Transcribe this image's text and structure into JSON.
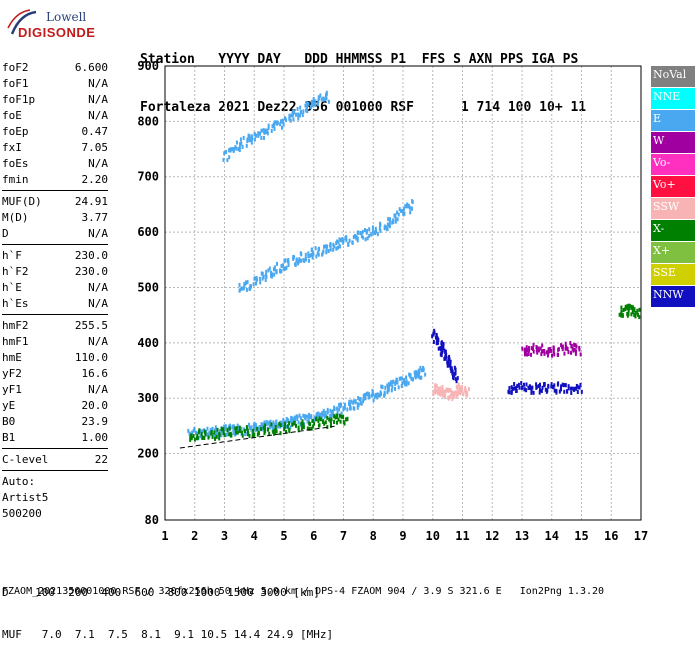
{
  "logo": {
    "line1": "Lowell",
    "line2": "DIGISONDE"
  },
  "header": {
    "labels": "Station   YYYY DAY   DDD HHMMSS P1  FFS S AXN PPS IGA PS",
    "values": "Fortaleza 2021 Dez22 356 001000 RSF      1 714 100 10+ 11"
  },
  "params": [
    {
      "name": "foF2",
      "value": "6.600"
    },
    {
      "name": "foF1",
      "value": "N/A"
    },
    {
      "name": "foF1p",
      "value": "N/A"
    },
    {
      "name": "foE",
      "value": "N/A"
    },
    {
      "name": "foEp",
      "value": "0.47"
    },
    {
      "name": "fxI",
      "value": "7.05"
    },
    {
      "name": "foEs",
      "value": "N/A"
    },
    {
      "name": "fmin",
      "value": "2.20"
    },
    {
      "sep": true
    },
    {
      "name": "MUF(D)",
      "value": "24.91"
    },
    {
      "name": "M(D)",
      "value": "3.77"
    },
    {
      "name": "D",
      "value": "N/A"
    },
    {
      "sep": true
    },
    {
      "name": "h`F",
      "value": "230.0"
    },
    {
      "name": "h`F2",
      "value": "230.0"
    },
    {
      "name": "h`E",
      "value": "N/A"
    },
    {
      "name": "h`Es",
      "value": "N/A"
    },
    {
      "sep": true
    },
    {
      "name": "hmF2",
      "value": "255.5"
    },
    {
      "name": "hmF1",
      "value": "N/A"
    },
    {
      "name": "hmE",
      "value": "110.0"
    },
    {
      "name": "yF2",
      "value": "16.6"
    },
    {
      "name": "yF1",
      "value": "N/A"
    },
    {
      "name": "yE",
      "value": "20.0"
    },
    {
      "name": "B0",
      "value": "23.9"
    },
    {
      "name": "B1",
      "value": "1.00"
    },
    {
      "sep": true
    },
    {
      "name": "C-level",
      "value": "22"
    },
    {
      "sep": true
    },
    {
      "name": "Auto:",
      "value": ""
    },
    {
      "name": "Artist5",
      "value": ""
    },
    {
      "name": "500200",
      "value": ""
    }
  ],
  "legend": [
    {
      "label": "NoVal",
      "color": "#808080"
    },
    {
      "label": "NNE",
      "color": "#00ffff"
    },
    {
      "label": "E",
      "color": "#4aa8f0"
    },
    {
      "label": "W",
      "color": "#a000a0"
    },
    {
      "label": "Vo-",
      "color": "#ff30c0"
    },
    {
      "label": "Vo+",
      "color": "#ff1040"
    },
    {
      "label": "SSW",
      "color": "#f8b4b4"
    },
    {
      "label": "X-",
      "color": "#008000"
    },
    {
      "label": "X+",
      "color": "#80c040"
    },
    {
      "label": "SSE",
      "color": "#d0d000"
    },
    {
      "label": "NNW",
      "color": "#1010c0"
    }
  ],
  "footer": {
    "d_line": "D    100  200  400  600  800 1000 1500 3000 [km]",
    "muf_line": "MUF   7.0  7.1  7.5  8.1  9.1 10.5 14.4 24.9 [MHz]",
    "file_line": "FZAOM_2021356001000.RSF / 320fx256h 50 kHz 5.0 km / DPS-4 FZAOM 904 / 3.9 S 321.6 E   Ion2Png 1.3.20"
  },
  "chart_data": {
    "type": "scatter",
    "xlim": [
      1,
      17
    ],
    "ylim": [
      80,
      900
    ],
    "xticks": [
      1,
      2,
      3,
      4,
      5,
      6,
      7,
      8,
      9,
      10,
      11,
      12,
      13,
      14,
      15,
      16,
      17
    ],
    "yticks": [
      80,
      200,
      300,
      400,
      500,
      600,
      700,
      800,
      900
    ],
    "grid": true,
    "traces": [
      {
        "name": "O-trace",
        "color": "#4aa8f0",
        "x": [
          1.8,
          2.2,
          2.6,
          3.0,
          3.4,
          3.8,
          4.2,
          4.6,
          5.0,
          5.4,
          5.8,
          6.2,
          6.6,
          7.0,
          7.4,
          7.8,
          8.2,
          8.6,
          9.0,
          9.4,
          9.7
        ],
        "y": [
          240,
          240,
          242,
          244,
          246,
          248,
          250,
          254,
          258,
          262,
          266,
          272,
          278,
          285,
          295,
          305,
          315,
          325,
          335,
          345,
          352
        ]
      },
      {
        "name": "echo2",
        "color": "#4aa8f0",
        "x": [
          3.5,
          4.0,
          4.5,
          5.0,
          5.5,
          6.0,
          6.5,
          7.0,
          7.5,
          8.0,
          8.5,
          9.0,
          9.3
        ],
        "y": [
          500,
          515,
          530,
          545,
          555,
          565,
          575,
          585,
          595,
          605,
          620,
          640,
          655
        ]
      },
      {
        "name": "echo3",
        "color": "#4aa8f0",
        "x": [
          3.0,
          3.5,
          4.0,
          4.5,
          5.0,
          5.5,
          6.0,
          6.5
        ],
        "y": [
          740,
          760,
          775,
          790,
          805,
          820,
          835,
          850
        ]
      },
      {
        "name": "X-trace",
        "color": "#008000",
        "x": [
          1.8,
          2.5,
          3.2,
          3.9,
          4.6,
          5.3,
          6.0,
          6.6,
          7.2
        ],
        "y": [
          235,
          238,
          241,
          244,
          248,
          252,
          257,
          262,
          268
        ]
      },
      {
        "name": "NNW-band",
        "color": "#1010c0",
        "x": [
          12.5,
          13.0,
          13.5,
          14.0,
          14.5,
          15.0
        ],
        "y": [
          320,
          322,
          320,
          321,
          322,
          320
        ]
      },
      {
        "name": "NNW-cluster",
        "color": "#1010c0",
        "x": [
          10.0,
          10.2,
          10.4,
          10.6,
          10.8
        ],
        "y": [
          420,
          400,
          380,
          360,
          340
        ]
      },
      {
        "name": "W-cluster",
        "color": "#a000a0",
        "x": [
          13.0,
          13.5,
          14.0,
          14.5,
          15.0
        ],
        "y": [
          390,
          392,
          388,
          395,
          390
        ]
      },
      {
        "name": "SSW-cluster",
        "color": "#f8b4b4",
        "x": [
          10.0,
          10.3,
          10.6,
          10.9,
          11.2
        ],
        "y": [
          320,
          315,
          310,
          320,
          315
        ]
      },
      {
        "name": "X-far",
        "color": "#008000",
        "x": [
          16.3,
          16.6,
          16.9
        ],
        "y": [
          460,
          462,
          458
        ]
      }
    ]
  }
}
